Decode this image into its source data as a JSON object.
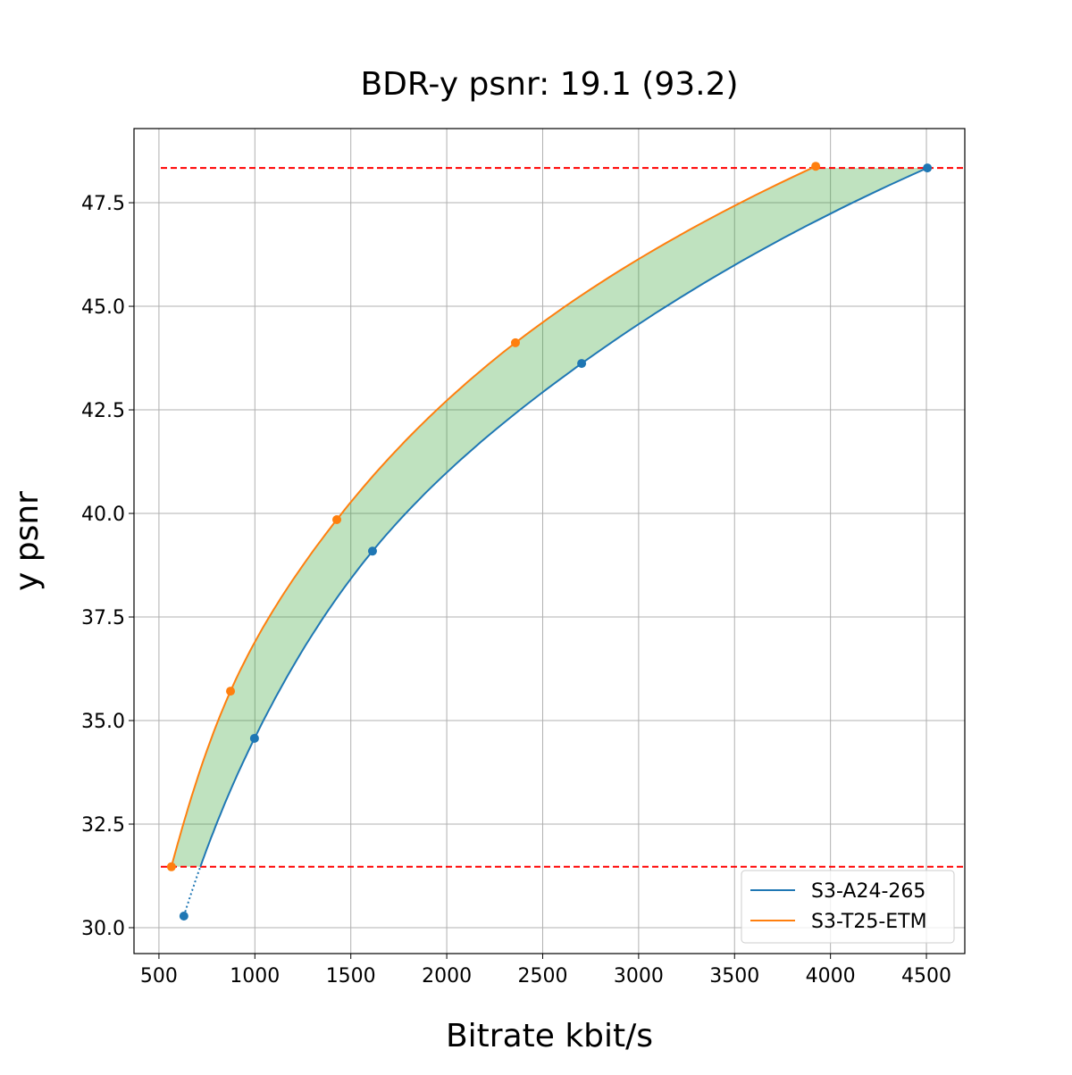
{
  "chart_data": {
    "type": "line",
    "title": "BDR-y psnr: 19.1 (93.2)",
    "xlabel": "Bitrate kbit/s",
    "ylabel": "y psnr",
    "xlim": [
      370,
      4700
    ],
    "ylim": [
      29.375,
      49.29
    ],
    "xticks": [
      500,
      1000,
      1500,
      2000,
      2500,
      3000,
      3500,
      4000,
      4500
    ],
    "yticks": [
      30.0,
      32.5,
      35.0,
      37.5,
      40.0,
      42.5,
      45.0,
      47.5
    ],
    "ytick_labels": [
      "30.0",
      "32.5",
      "35.0",
      "37.5",
      "40.0",
      "42.5",
      "45.0",
      "47.5"
    ],
    "grid": true,
    "legend_position": "bottom-right",
    "series": [
      {
        "name": "S3-A24-265",
        "color": "#1f77b4",
        "x": [
          630,
          998,
          1613,
          2703,
          4505
        ],
        "y": [
          30.28,
          34.57,
          39.09,
          43.62,
          48.34
        ]
      },
      {
        "name": "S3-T25-ETM",
        "color": "#ff7f0e",
        "x": [
          565,
          873,
          1427,
          2358,
          3923
        ],
        "y": [
          31.47,
          35.71,
          39.85,
          44.12,
          48.38
        ]
      }
    ],
    "reference_lines": {
      "orientation": "horizontal",
      "y": [
        31.47,
        48.34
      ],
      "color": "#ff0000",
      "style": "dashed"
    },
    "fill_between": {
      "color": "#2ca02c",
      "alpha": 0.3,
      "y_range": [
        31.47,
        48.34
      ]
    }
  }
}
